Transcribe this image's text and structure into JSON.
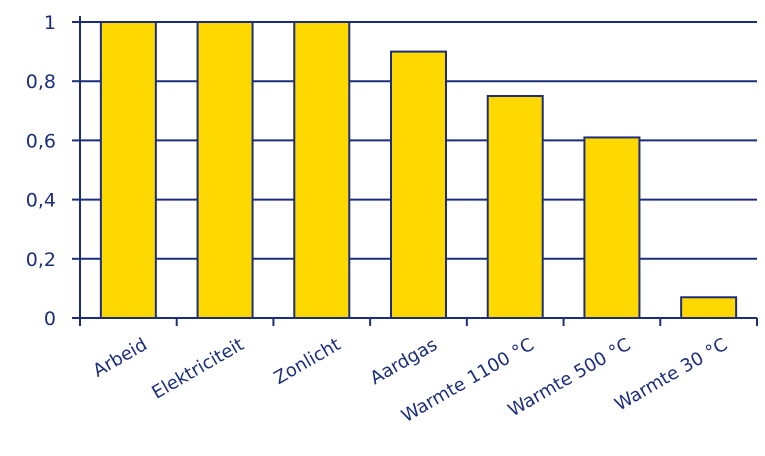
{
  "chart_data": {
    "type": "bar",
    "categories": [
      "Arbeid",
      "Elektriciteit",
      "Zonlicht",
      "Aardgas",
      "Warmte 1100 °C",
      "Warmte 500 °C",
      "Warmte 30 °C"
    ],
    "values": [
      1.0,
      1.0,
      1.0,
      0.9,
      0.75,
      0.61,
      0.07
    ],
    "yticks": [
      "0",
      "0,2",
      "0,4",
      "0,6",
      "0,8",
      "1"
    ],
    "ylim": [
      0,
      1
    ],
    "grid": true,
    "legend": "none",
    "colors": {
      "bar": "#ffd800",
      "line": "#1c2e7a",
      "text": "#1c2e7a"
    }
  }
}
